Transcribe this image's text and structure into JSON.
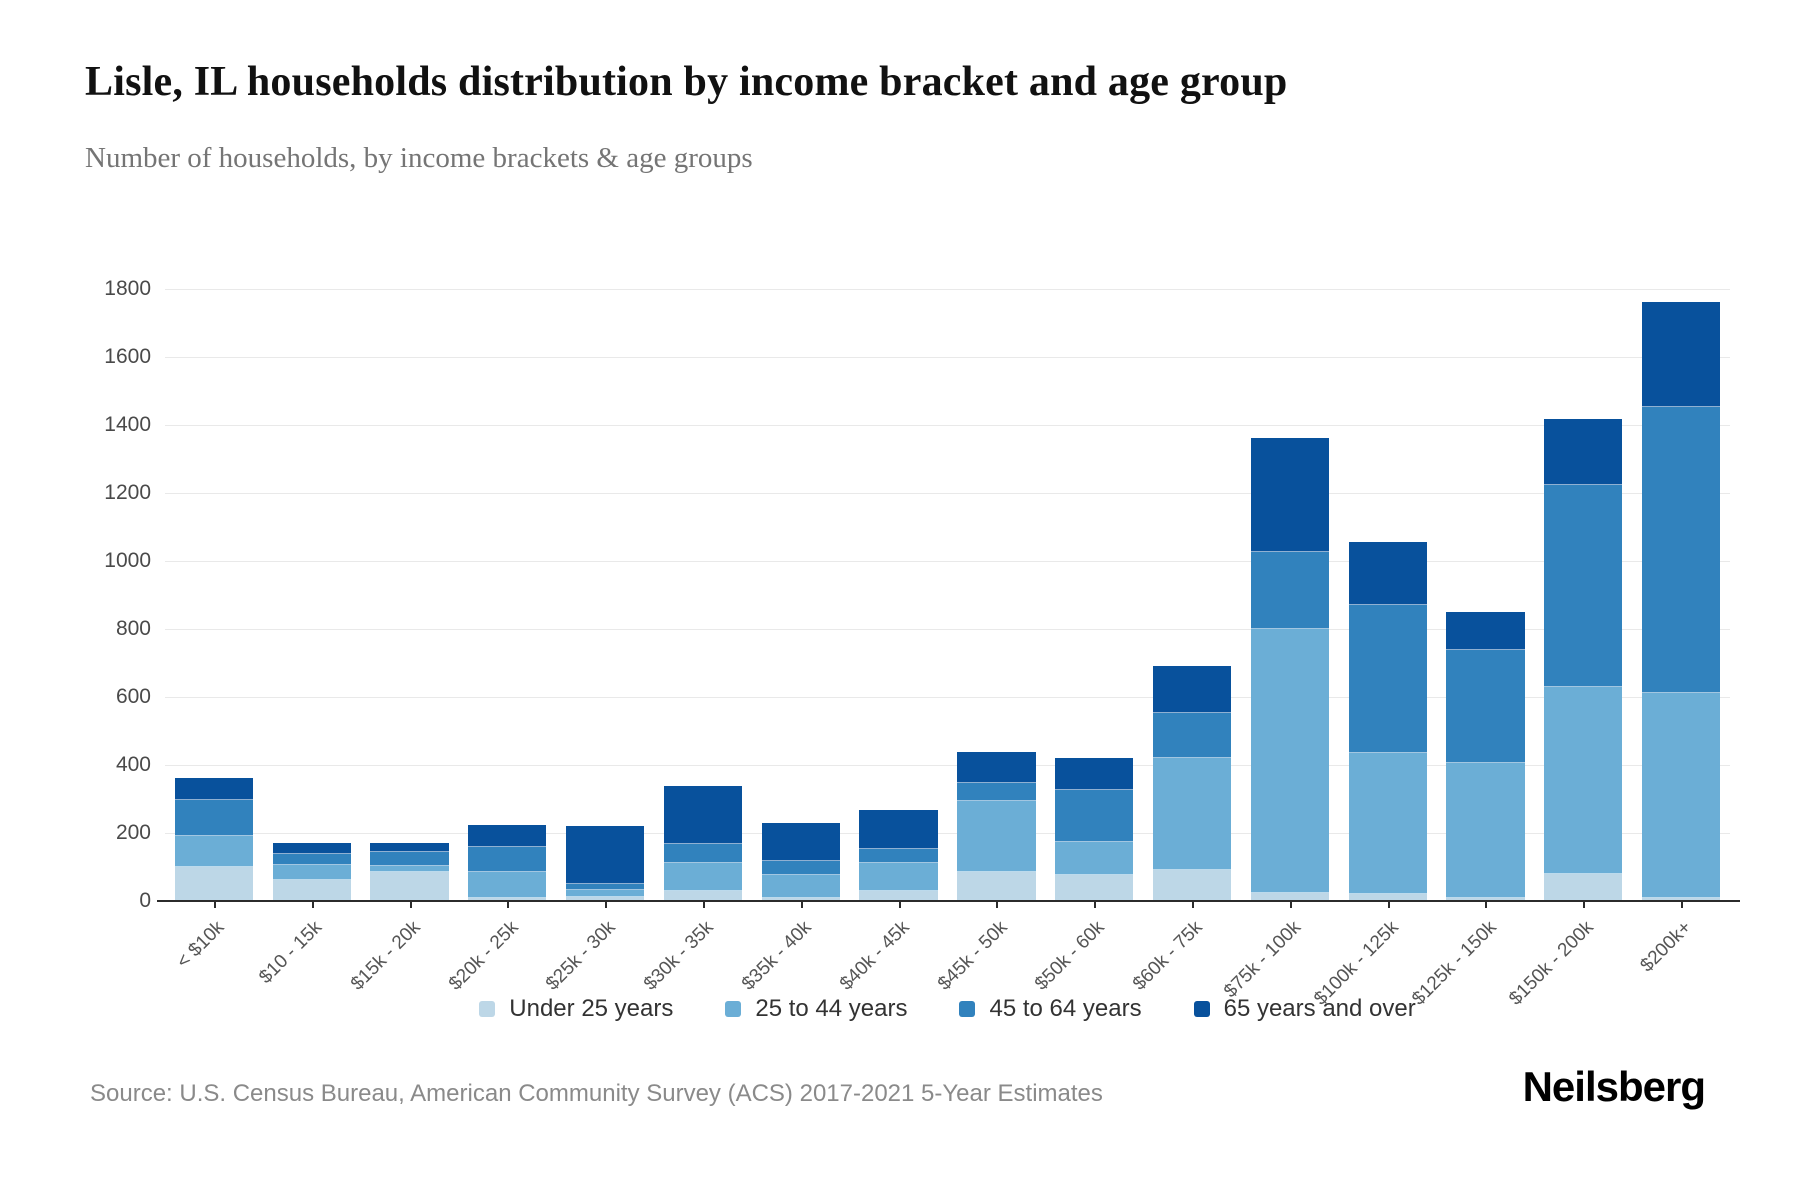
{
  "header": {
    "title": "Lisle, IL households distribution by income bracket and age group",
    "subtitle": "Number of households, by income brackets & age groups"
  },
  "chart_data": {
    "type": "bar",
    "stacked": true,
    "categories": [
      "< $10k",
      "$10 - 15k",
      "$15k - 20k",
      "$20k - 25k",
      "$25k - 30k",
      "$30k - 35k",
      "$35k - 40k",
      "$40k - 45k",
      "$45k - 50k",
      "$50k - 60k",
      "$60k - 75k",
      "$75k - 100k",
      "$100k - 125k",
      "$125k - 150k",
      "$150k - 200k",
      "$200k+"
    ],
    "series": [
      {
        "name": "Under 25 years",
        "color": "#bdd7e7",
        "values": [
          100,
          62,
          84,
          10,
          13,
          30,
          10,
          30,
          86,
          77,
          91,
          25,
          20,
          9,
          79,
          8
        ]
      },
      {
        "name": "25 to 44 years",
        "color": "#6baed6",
        "values": [
          92,
          44,
          20,
          76,
          20,
          82,
          68,
          82,
          209,
          98,
          329,
          774,
          415,
          397,
          549,
          604
        ]
      },
      {
        "name": "45 to 64 years",
        "color": "#3182bd",
        "values": [
          104,
          32,
          40,
          74,
          17,
          56,
          39,
          42,
          51,
          152,
          134,
          227,
          435,
          333,
          595,
          842
        ]
      },
      {
        "name": "65 years and over",
        "color": "#08519c",
        "values": [
          66,
          34,
          26,
          64,
          171,
          170,
          113,
          114,
          93,
          93,
          137,
          335,
          186,
          112,
          194,
          307
        ]
      }
    ],
    "totals": [
      362,
      172,
      170,
      224,
      221,
      338,
      230,
      268,
      439,
      420,
      691,
      1361,
      1056,
      851,
      1417,
      1761
    ],
    "title": "Lisle, IL households distribution by income bracket and age group",
    "xlabel": "",
    "ylabel": "Number of households",
    "ylim": [
      0,
      1800
    ],
    "ytick_step": 200,
    "grid": "horizontal",
    "legend_position": "bottom"
  },
  "footer": {
    "source": "Source: U.S. Census Bureau, American Community Survey (ACS) 2017-2021 5-Year Estimates",
    "brand": "Neilsberg"
  }
}
